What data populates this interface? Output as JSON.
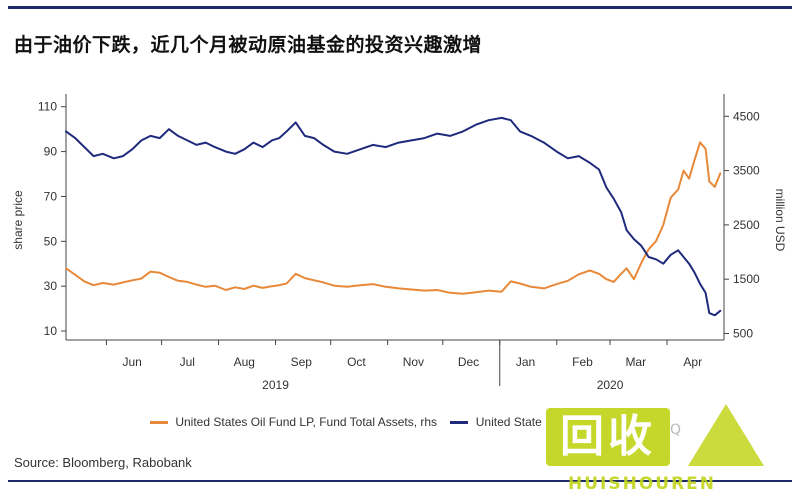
{
  "title": "由于油价下跌，近几个月被动原油基金的投资兴趣激增",
  "source": "Source: Bloomberg, Rabobank",
  "watermark": {
    "main": "回收",
    "sub": "HUISHOUREN",
    "small": "Q"
  },
  "colors": {
    "share_price": "#1f2a7c",
    "assets": "#e8893a",
    "rule": "#1c2a6b"
  },
  "chart_data": {
    "type": "line",
    "ylabel": "share price",
    "y2label": "million USD",
    "ylim": [
      6,
      113
    ],
    "y2lim": [
      380,
      4800
    ],
    "yticks": [
      10,
      30,
      50,
      70,
      90,
      110
    ],
    "y2ticks": [
      500,
      1500,
      2500,
      3500,
      4500
    ],
    "xlim": [
      "2019-05-10",
      "2020-05-02"
    ],
    "x_ticks": [
      {
        "label": "Jun",
        "date": "2019-06-01"
      },
      {
        "label": "Jul",
        "date": "2019-07-01"
      },
      {
        "label": "Aug",
        "date": "2019-08-01"
      },
      {
        "label": "Sep",
        "date": "2019-09-01"
      },
      {
        "label": "Oct",
        "date": "2019-10-01"
      },
      {
        "label": "Nov",
        "date": "2019-11-01"
      },
      {
        "label": "Dec",
        "date": "2019-12-01"
      },
      {
        "label": "Jan",
        "date": "2020-01-01"
      },
      {
        "label": "Feb",
        "date": "2020-02-01"
      },
      {
        "label": "Mar",
        "date": "2020-03-01"
      },
      {
        "label": "Apr",
        "date": "2020-04-01"
      }
    ],
    "year_labels": [
      {
        "label": "2019",
        "date": "2019-09-01"
      },
      {
        "label": "2020",
        "date": "2020-03-01"
      }
    ],
    "year_boundary": "2020-01-01",
    "series": [
      {
        "name": "United States Oil Fund LP, Fund Total Assets, rhs",
        "axis": "right",
        "color": "#e8893a",
        "points": [
          [
            "2019-05-10",
            1700
          ],
          [
            "2019-05-15",
            1580
          ],
          [
            "2019-05-20",
            1460
          ],
          [
            "2019-05-25",
            1390
          ],
          [
            "2019-05-30",
            1430
          ],
          [
            "2019-06-05",
            1400
          ],
          [
            "2019-06-10",
            1440
          ],
          [
            "2019-06-15",
            1480
          ],
          [
            "2019-06-20",
            1510
          ],
          [
            "2019-06-25",
            1640
          ],
          [
            "2019-06-30",
            1620
          ],
          [
            "2019-07-05",
            1540
          ],
          [
            "2019-07-10",
            1470
          ],
          [
            "2019-07-15",
            1450
          ],
          [
            "2019-07-20",
            1400
          ],
          [
            "2019-07-25",
            1360
          ],
          [
            "2019-07-30",
            1380
          ],
          [
            "2019-08-05",
            1300
          ],
          [
            "2019-08-10",
            1350
          ],
          [
            "2019-08-15",
            1320
          ],
          [
            "2019-08-20",
            1380
          ],
          [
            "2019-08-25",
            1340
          ],
          [
            "2019-08-30",
            1370
          ],
          [
            "2019-09-03",
            1390
          ],
          [
            "2019-09-07",
            1420
          ],
          [
            "2019-09-12",
            1600
          ],
          [
            "2019-09-17",
            1520
          ],
          [
            "2019-09-22",
            1480
          ],
          [
            "2019-09-27",
            1440
          ],
          [
            "2019-10-03",
            1380
          ],
          [
            "2019-10-10",
            1360
          ],
          [
            "2019-10-17",
            1390
          ],
          [
            "2019-10-24",
            1410
          ],
          [
            "2019-10-31",
            1360
          ],
          [
            "2019-11-07",
            1330
          ],
          [
            "2019-11-14",
            1310
          ],
          [
            "2019-11-21",
            1290
          ],
          [
            "2019-11-28",
            1300
          ],
          [
            "2019-12-05",
            1250
          ],
          [
            "2019-12-12",
            1230
          ],
          [
            "2019-12-19",
            1260
          ],
          [
            "2019-12-26",
            1290
          ],
          [
            "2020-01-02",
            1270
          ],
          [
            "2020-01-07",
            1460
          ],
          [
            "2020-01-12",
            1420
          ],
          [
            "2020-01-18",
            1360
          ],
          [
            "2020-01-25",
            1330
          ],
          [
            "2020-02-01",
            1410
          ],
          [
            "2020-02-07",
            1470
          ],
          [
            "2020-02-13",
            1590
          ],
          [
            "2020-02-19",
            1660
          ],
          [
            "2020-02-24",
            1600
          ],
          [
            "2020-02-28",
            1500
          ],
          [
            "2020-03-03",
            1450
          ],
          [
            "2020-03-07",
            1600
          ],
          [
            "2020-03-10",
            1700
          ],
          [
            "2020-03-14",
            1500
          ],
          [
            "2020-03-18",
            1800
          ],
          [
            "2020-03-22",
            2050
          ],
          [
            "2020-03-26",
            2200
          ],
          [
            "2020-03-30",
            2500
          ],
          [
            "2020-04-03",
            3000
          ],
          [
            "2020-04-07",
            3150
          ],
          [
            "2020-04-10",
            3500
          ],
          [
            "2020-04-13",
            3350
          ],
          [
            "2020-04-16",
            3700
          ],
          [
            "2020-04-19",
            4020
          ],
          [
            "2020-04-22",
            3900
          ],
          [
            "2020-04-24",
            3300
          ],
          [
            "2020-04-27",
            3200
          ],
          [
            "2020-04-30",
            3450
          ]
        ]
      },
      {
        "name": "United States Oil Fund LP, share price",
        "axis": "left",
        "color": "#1f2a7c",
        "points": [
          [
            "2019-05-10",
            99
          ],
          [
            "2019-05-15",
            96
          ],
          [
            "2019-05-20",
            92
          ],
          [
            "2019-05-25",
            88
          ],
          [
            "2019-05-30",
            89
          ],
          [
            "2019-06-05",
            87
          ],
          [
            "2019-06-10",
            88
          ],
          [
            "2019-06-15",
            91
          ],
          [
            "2019-06-20",
            95
          ],
          [
            "2019-06-25",
            97
          ],
          [
            "2019-06-30",
            96
          ],
          [
            "2019-07-05",
            100
          ],
          [
            "2019-07-10",
            97
          ],
          [
            "2019-07-15",
            95
          ],
          [
            "2019-07-20",
            93
          ],
          [
            "2019-07-25",
            94
          ],
          [
            "2019-07-30",
            92
          ],
          [
            "2019-08-05",
            90
          ],
          [
            "2019-08-10",
            89
          ],
          [
            "2019-08-15",
            91
          ],
          [
            "2019-08-20",
            94
          ],
          [
            "2019-08-25",
            92
          ],
          [
            "2019-08-30",
            95
          ],
          [
            "2019-09-03",
            96
          ],
          [
            "2019-09-07",
            99
          ],
          [
            "2019-09-12",
            103
          ],
          [
            "2019-09-17",
            97
          ],
          [
            "2019-09-22",
            96
          ],
          [
            "2019-09-27",
            93
          ],
          [
            "2019-10-03",
            90
          ],
          [
            "2019-10-10",
            89
          ],
          [
            "2019-10-17",
            91
          ],
          [
            "2019-10-24",
            93
          ],
          [
            "2019-10-31",
            92
          ],
          [
            "2019-11-07",
            94
          ],
          [
            "2019-11-14",
            95
          ],
          [
            "2019-11-21",
            96
          ],
          [
            "2019-11-28",
            98
          ],
          [
            "2019-12-05",
            97
          ],
          [
            "2019-12-12",
            99
          ],
          [
            "2019-12-19",
            102
          ],
          [
            "2019-12-26",
            104
          ],
          [
            "2020-01-02",
            105
          ],
          [
            "2020-01-07",
            104
          ],
          [
            "2020-01-12",
            99
          ],
          [
            "2020-01-18",
            97
          ],
          [
            "2020-01-25",
            94
          ],
          [
            "2020-02-01",
            90
          ],
          [
            "2020-02-07",
            87
          ],
          [
            "2020-02-13",
            88
          ],
          [
            "2020-02-19",
            85
          ],
          [
            "2020-02-24",
            82
          ],
          [
            "2020-02-28",
            74
          ],
          [
            "2020-03-03",
            69
          ],
          [
            "2020-03-07",
            63
          ],
          [
            "2020-03-10",
            55
          ],
          [
            "2020-03-14",
            51
          ],
          [
            "2020-03-18",
            48
          ],
          [
            "2020-03-22",
            43
          ],
          [
            "2020-03-26",
            42
          ],
          [
            "2020-03-30",
            40
          ],
          [
            "2020-04-03",
            44
          ],
          [
            "2020-04-07",
            46
          ],
          [
            "2020-04-10",
            43
          ],
          [
            "2020-04-13",
            40
          ],
          [
            "2020-04-16",
            36
          ],
          [
            "2020-04-19",
            31
          ],
          [
            "2020-04-22",
            27
          ],
          [
            "2020-04-24",
            18
          ],
          [
            "2020-04-27",
            17
          ],
          [
            "2020-04-30",
            19
          ]
        ]
      }
    ],
    "legend": [
      {
        "label": "United States Oil Fund LP, Fund Total Assets, rhs",
        "color": "#e8893a"
      },
      {
        "label": "United State",
        "color": "#1f2a7c"
      }
    ],
    "grid": false,
    "legend_position": "bottom"
  }
}
